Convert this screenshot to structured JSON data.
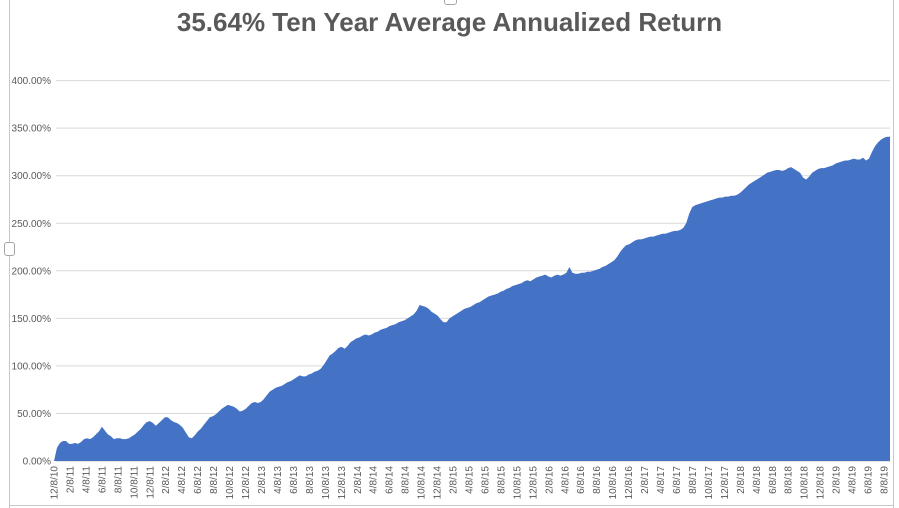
{
  "chart_data": {
    "type": "area",
    "title": "35.64% Ten Year Average Annualized Return",
    "grid": "horizontal",
    "legend_position": "none",
    "ylim": [
      0,
      400
    ],
    "y_tick_labels": [
      "0.00%",
      "50.00%",
      "100.00%",
      "150.00%",
      "200.00%",
      "250.00%",
      "300.00%",
      "350.00%",
      "400.00%"
    ],
    "x_tick_labels": [
      "12/8/10",
      "2/8/11",
      "4/8/11",
      "6/8/11",
      "8/8/11",
      "10/8/11",
      "12/8/11",
      "2/8/12",
      "4/8/12",
      "6/8/12",
      "8/8/12",
      "10/8/12",
      "12/8/12",
      "2/8/13",
      "4/8/13",
      "6/8/13",
      "8/8/13",
      "10/8/13",
      "12/8/13",
      "2/8/14",
      "4/8/14",
      "6/8/14",
      "8/8/14",
      "10/8/14",
      "12/8/14",
      "2/8/15",
      "4/8/15",
      "6/8/15",
      "8/8/15",
      "10/8/15",
      "12/8/15",
      "2/8/16",
      "4/8/16",
      "6/8/16",
      "8/8/16",
      "10/8/16",
      "12/8/16",
      "2/8/17",
      "4/8/17",
      "6/8/17",
      "8/8/17",
      "10/8/17",
      "12/8/17",
      "2/8/18",
      "4/8/18",
      "6/8/18",
      "8/8/18",
      "10/8/18",
      "12/8/18",
      "2/8/19",
      "4/8/19",
      "6/8/19",
      "8/8/19"
    ],
    "values_pct": [
      0,
      14,
      19,
      21,
      21,
      18,
      18,
      19,
      18,
      20,
      23,
      24,
      23,
      25,
      28,
      31,
      36,
      32,
      28,
      26,
      23,
      24,
      24,
      23,
      23,
      24,
      26,
      28,
      31,
      34,
      38,
      41,
      42,
      40,
      37,
      40,
      43,
      46,
      46,
      43,
      41,
      40,
      38,
      35,
      30,
      25,
      24,
      27,
      31,
      34,
      38,
      42,
      46,
      47,
      49,
      52,
      55,
      57,
      59,
      58,
      57,
      55,
      52,
      53,
      55,
      58,
      61,
      62,
      61,
      62,
      65,
      69,
      73,
      75,
      77,
      78,
      79,
      81,
      83,
      84,
      86,
      88,
      90,
      89,
      89,
      91,
      92,
      94,
      95,
      97,
      101,
      106,
      111,
      113,
      116,
      119,
      120,
      118,
      121,
      125,
      127,
      129,
      130,
      132,
      133,
      132,
      133,
      135,
      136,
      138,
      139,
      140,
      142,
      143,
      144,
      146,
      147,
      148,
      150,
      152,
      154,
      158,
      164,
      163,
      162,
      160,
      157,
      155,
      153,
      149,
      146,
      146,
      150,
      152,
      154,
      156,
      158,
      160,
      161,
      162,
      164,
      166,
      167,
      169,
      171,
      173,
      174,
      175,
      176,
      178,
      179,
      181,
      182,
      184,
      185,
      186,
      187,
      189,
      190,
      189,
      191,
      193,
      194,
      195,
      196,
      194,
      193,
      195,
      196,
      195,
      196,
      198,
      204,
      198,
      197,
      197,
      198,
      198,
      199,
      199,
      200,
      201,
      202,
      204,
      205,
      207,
      209,
      211,
      215,
      220,
      224,
      227,
      228,
      230,
      232,
      233,
      233,
      234,
      235,
      236,
      236,
      237,
      238,
      239,
      239,
      240,
      241,
      242,
      242,
      243,
      245,
      250,
      260,
      267,
      269,
      270,
      271,
      272,
      273,
      274,
      275,
      276,
      277,
      277,
      278,
      278,
      279,
      279,
      280,
      282,
      285,
      288,
      291,
      293,
      295,
      297,
      299,
      301,
      303,
      304,
      305,
      306,
      306,
      305,
      306,
      308,
      309,
      307,
      305,
      303,
      298,
      296,
      299,
      303,
      305,
      307,
      308,
      308,
      309,
      310,
      311,
      313,
      314,
      315,
      316,
      316,
      317,
      318,
      317,
      317,
      319,
      316,
      318,
      325,
      331,
      335,
      338,
      340,
      341,
      341
    ],
    "colors": {
      "area_fill": "#4472C4",
      "gridline": "#D9D9D9",
      "axis_line": "#C9C9C9",
      "tick_label": "#595959",
      "title": "#595959",
      "frame_border": "#C8C8C8"
    }
  }
}
